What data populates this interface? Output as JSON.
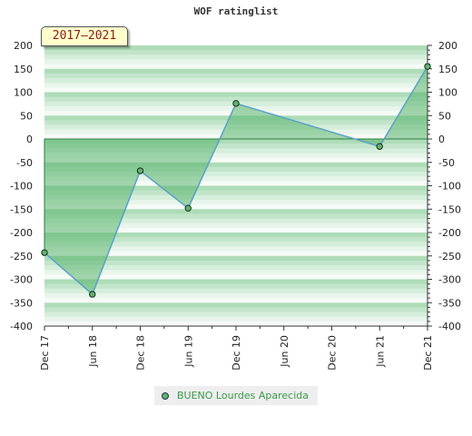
{
  "chart_data": {
    "type": "area",
    "title": "WOF ratinglist",
    "period_badge": "2017–2021",
    "ylim": [
      -400,
      200
    ],
    "y_ticks": [
      200,
      150,
      100,
      50,
      0,
      -50,
      -100,
      -150,
      -200,
      -250,
      -300,
      -350,
      -400
    ],
    "x_ticks": [
      "Dec 17",
      "Jun 18",
      "Dec 18",
      "Jun 19",
      "Dec 19",
      "Jun 20",
      "Dec 20",
      "Jun 21",
      "Dec 21"
    ],
    "xlim": [
      0,
      8
    ],
    "series": [
      {
        "name": "BUENO Lourdes Aparecida",
        "x": [
          "Dec 17",
          "Jun 18",
          "Dec 18",
          "Jun 19",
          "Dec 19",
          "Jun 21",
          "Dec 21"
        ],
        "x_index": [
          0,
          1,
          2,
          3,
          4,
          7,
          8
        ],
        "values": [
          -243,
          -332,
          -68,
          -148,
          76,
          -16,
          155
        ]
      }
    ],
    "legend_position": "bottom-center",
    "grid": true,
    "colors": {
      "line": "#5aa0c8",
      "fill": "#5ab46e",
      "marker": "#5fb36d",
      "band_dark": "#aedcb8",
      "band_light": "#f4faf5"
    }
  }
}
